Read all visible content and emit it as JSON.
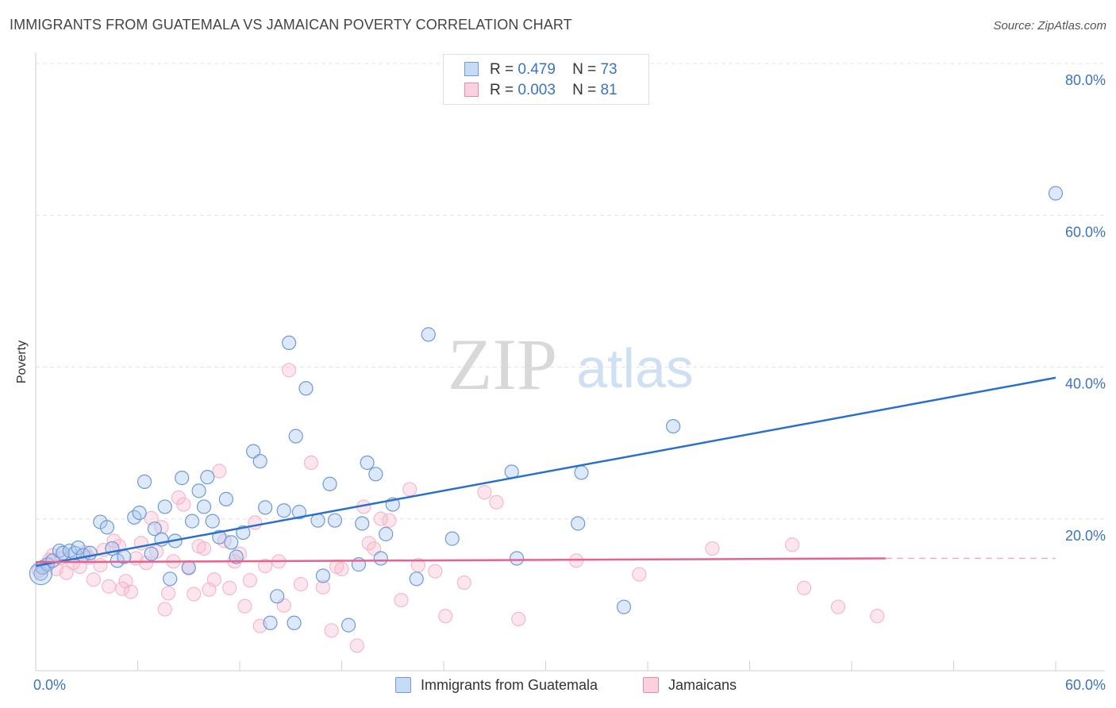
{
  "header": {
    "title": "IMMIGRANTS FROM GUATEMALA VS JAMAICAN POVERTY CORRELATION CHART",
    "source": "Source: ZipAtlas.com"
  },
  "legend": {
    "r_label": "R =",
    "n_label": "N =",
    "rows": [
      {
        "r": "0.479",
        "n": "73"
      },
      {
        "r": "0.003",
        "n": "81"
      }
    ]
  },
  "watermark": {
    "zip": "ZIP",
    "atlas": "atlas"
  },
  "chart_data": {
    "type": "scatter",
    "title": "IMMIGRANTS FROM GUATEMALA VS JAMAICAN POVERTY CORRELATION CHART",
    "xlabel": "",
    "ylabel": "Poverty",
    "xlim": [
      0,
      60
    ],
    "ylim": [
      0,
      80
    ],
    "x_tick_labels": [
      "0.0%",
      "60.0%"
    ],
    "y_tick_labels": [
      "20.0%",
      "40.0%",
      "60.0%",
      "80.0%"
    ],
    "y_ticks": [
      20,
      40,
      60,
      80
    ],
    "grid": true,
    "legend_position": "top-center",
    "colors": {
      "series1": "#a9c8ef",
      "series1_line": "#2a6fcc",
      "series2": "#f5b8cb",
      "series2_line": "#e8628e",
      "axis_text": "#3b73c4"
    },
    "series": [
      {
        "name": "Immigrants from Guatemala",
        "r": 0.479,
        "n": 73,
        "trend": {
          "x": [
            0,
            60
          ],
          "y": [
            13.8,
            38.6
          ]
        },
        "points": [
          [
            0.3,
            12.8
          ],
          [
            0.4,
            13.6
          ],
          [
            0.7,
            14.0
          ],
          [
            1.0,
            14.5
          ],
          [
            1.4,
            15.8
          ],
          [
            1.6,
            15.5
          ],
          [
            2.0,
            15.8
          ],
          [
            2.3,
            15.5
          ],
          [
            2.5,
            16.2
          ],
          [
            2.8,
            15.2
          ],
          [
            3.2,
            15.5
          ],
          [
            3.8,
            19.6
          ],
          [
            4.2,
            18.9
          ],
          [
            4.5,
            16.1
          ],
          [
            4.8,
            14.5
          ],
          [
            5.2,
            15.0
          ],
          [
            5.8,
            20.2
          ],
          [
            6.1,
            20.8
          ],
          [
            6.4,
            24.9
          ],
          [
            6.8,
            15.4
          ],
          [
            7.0,
            18.7
          ],
          [
            7.4,
            17.3
          ],
          [
            7.6,
            21.6
          ],
          [
            7.9,
            12.1
          ],
          [
            8.2,
            17.1
          ],
          [
            8.6,
            25.4
          ],
          [
            9.0,
            13.6
          ],
          [
            9.2,
            19.7
          ],
          [
            9.6,
            23.7
          ],
          [
            9.9,
            21.6
          ],
          [
            10.1,
            25.5
          ],
          [
            10.4,
            19.7
          ],
          [
            10.8,
            17.6
          ],
          [
            11.2,
            22.6
          ],
          [
            11.5,
            16.9
          ],
          [
            11.8,
            15.0
          ],
          [
            12.2,
            18.2
          ],
          [
            12.8,
            28.9
          ],
          [
            13.2,
            27.6
          ],
          [
            13.5,
            21.5
          ],
          [
            13.8,
            6.3
          ],
          [
            14.2,
            9.8
          ],
          [
            14.6,
            21.1
          ],
          [
            14.9,
            43.2
          ],
          [
            15.2,
            6.3
          ],
          [
            15.3,
            30.9
          ],
          [
            15.5,
            20.9
          ],
          [
            15.9,
            37.2
          ],
          [
            16.6,
            19.8
          ],
          [
            16.9,
            12.5
          ],
          [
            17.3,
            24.6
          ],
          [
            17.6,
            19.8
          ],
          [
            18.4,
            6.0
          ],
          [
            19.0,
            14.0
          ],
          [
            19.2,
            19.4
          ],
          [
            19.5,
            27.4
          ],
          [
            20.0,
            25.9
          ],
          [
            20.3,
            14.8
          ],
          [
            20.6,
            18.0
          ],
          [
            21.0,
            21.9
          ],
          [
            22.4,
            12.1
          ],
          [
            23.1,
            44.3
          ],
          [
            24.5,
            17.4
          ],
          [
            28.0,
            26.2
          ],
          [
            28.3,
            14.8
          ],
          [
            31.9,
            19.4
          ],
          [
            32.1,
            26.1
          ],
          [
            34.6,
            8.4
          ],
          [
            37.5,
            32.2
          ],
          [
            60.0,
            62.9
          ]
        ]
      },
      {
        "name": "Jamaicans",
        "r": 0.003,
        "n": 81,
        "trend": {
          "x": [
            0,
            50
          ],
          "y": [
            14.3,
            14.8
          ]
        },
        "points": [
          [
            0.2,
            13.2
          ],
          [
            0.5,
            13.8
          ],
          [
            0.8,
            14.6
          ],
          [
            1.0,
            15.2
          ],
          [
            1.2,
            13.4
          ],
          [
            1.5,
            14.8
          ],
          [
            1.8,
            12.9
          ],
          [
            2.2,
            14.2
          ],
          [
            2.6,
            13.7
          ],
          [
            2.9,
            15.6
          ],
          [
            3.1,
            14.9
          ],
          [
            3.4,
            12.0
          ],
          [
            3.8,
            13.9
          ],
          [
            4.0,
            15.9
          ],
          [
            4.3,
            11.1
          ],
          [
            4.6,
            17.1
          ],
          [
            4.9,
            16.4
          ],
          [
            5.1,
            10.8
          ],
          [
            5.3,
            11.8
          ],
          [
            5.6,
            10.4
          ],
          [
            5.9,
            14.8
          ],
          [
            6.2,
            16.8
          ],
          [
            6.5,
            14.2
          ],
          [
            6.8,
            20.1
          ],
          [
            7.1,
            15.7
          ],
          [
            7.4,
            18.9
          ],
          [
            7.6,
            8.1
          ],
          [
            7.8,
            10.2
          ],
          [
            8.1,
            14.4
          ],
          [
            8.4,
            22.8
          ],
          [
            8.7,
            21.9
          ],
          [
            9.0,
            13.5
          ],
          [
            9.3,
            10.1
          ],
          [
            9.6,
            16.4
          ],
          [
            9.9,
            16.1
          ],
          [
            10.2,
            10.7
          ],
          [
            10.5,
            12.0
          ],
          [
            10.8,
            26.3
          ],
          [
            11.1,
            17.1
          ],
          [
            11.4,
            10.9
          ],
          [
            11.7,
            14.4
          ],
          [
            12.0,
            15.4
          ],
          [
            12.3,
            8.5
          ],
          [
            12.6,
            11.9
          ],
          [
            12.9,
            19.5
          ],
          [
            13.2,
            5.9
          ],
          [
            13.5,
            13.8
          ],
          [
            14.3,
            14.4
          ],
          [
            14.6,
            8.6
          ],
          [
            14.9,
            39.6
          ],
          [
            15.6,
            11.4
          ],
          [
            16.2,
            27.4
          ],
          [
            16.9,
            11.0
          ],
          [
            17.4,
            5.3
          ],
          [
            17.7,
            13.7
          ],
          [
            18.0,
            13.4
          ],
          [
            18.9,
            3.3
          ],
          [
            19.3,
            21.6
          ],
          [
            19.6,
            16.8
          ],
          [
            19.9,
            16.1
          ],
          [
            20.3,
            20.0
          ],
          [
            20.8,
            19.8
          ],
          [
            21.5,
            9.3
          ],
          [
            22.0,
            23.9
          ],
          [
            22.5,
            13.9
          ],
          [
            23.5,
            13.1
          ],
          [
            24.1,
            7.2
          ],
          [
            25.2,
            11.6
          ],
          [
            26.4,
            23.5
          ],
          [
            27.1,
            22.2
          ],
          [
            28.4,
            6.8
          ],
          [
            31.8,
            14.5
          ],
          [
            35.5,
            12.7
          ],
          [
            44.5,
            16.6
          ],
          [
            45.2,
            10.9
          ],
          [
            47.2,
            8.4
          ],
          [
            49.5,
            7.2
          ],
          [
            39.8,
            16.1
          ]
        ]
      }
    ]
  }
}
